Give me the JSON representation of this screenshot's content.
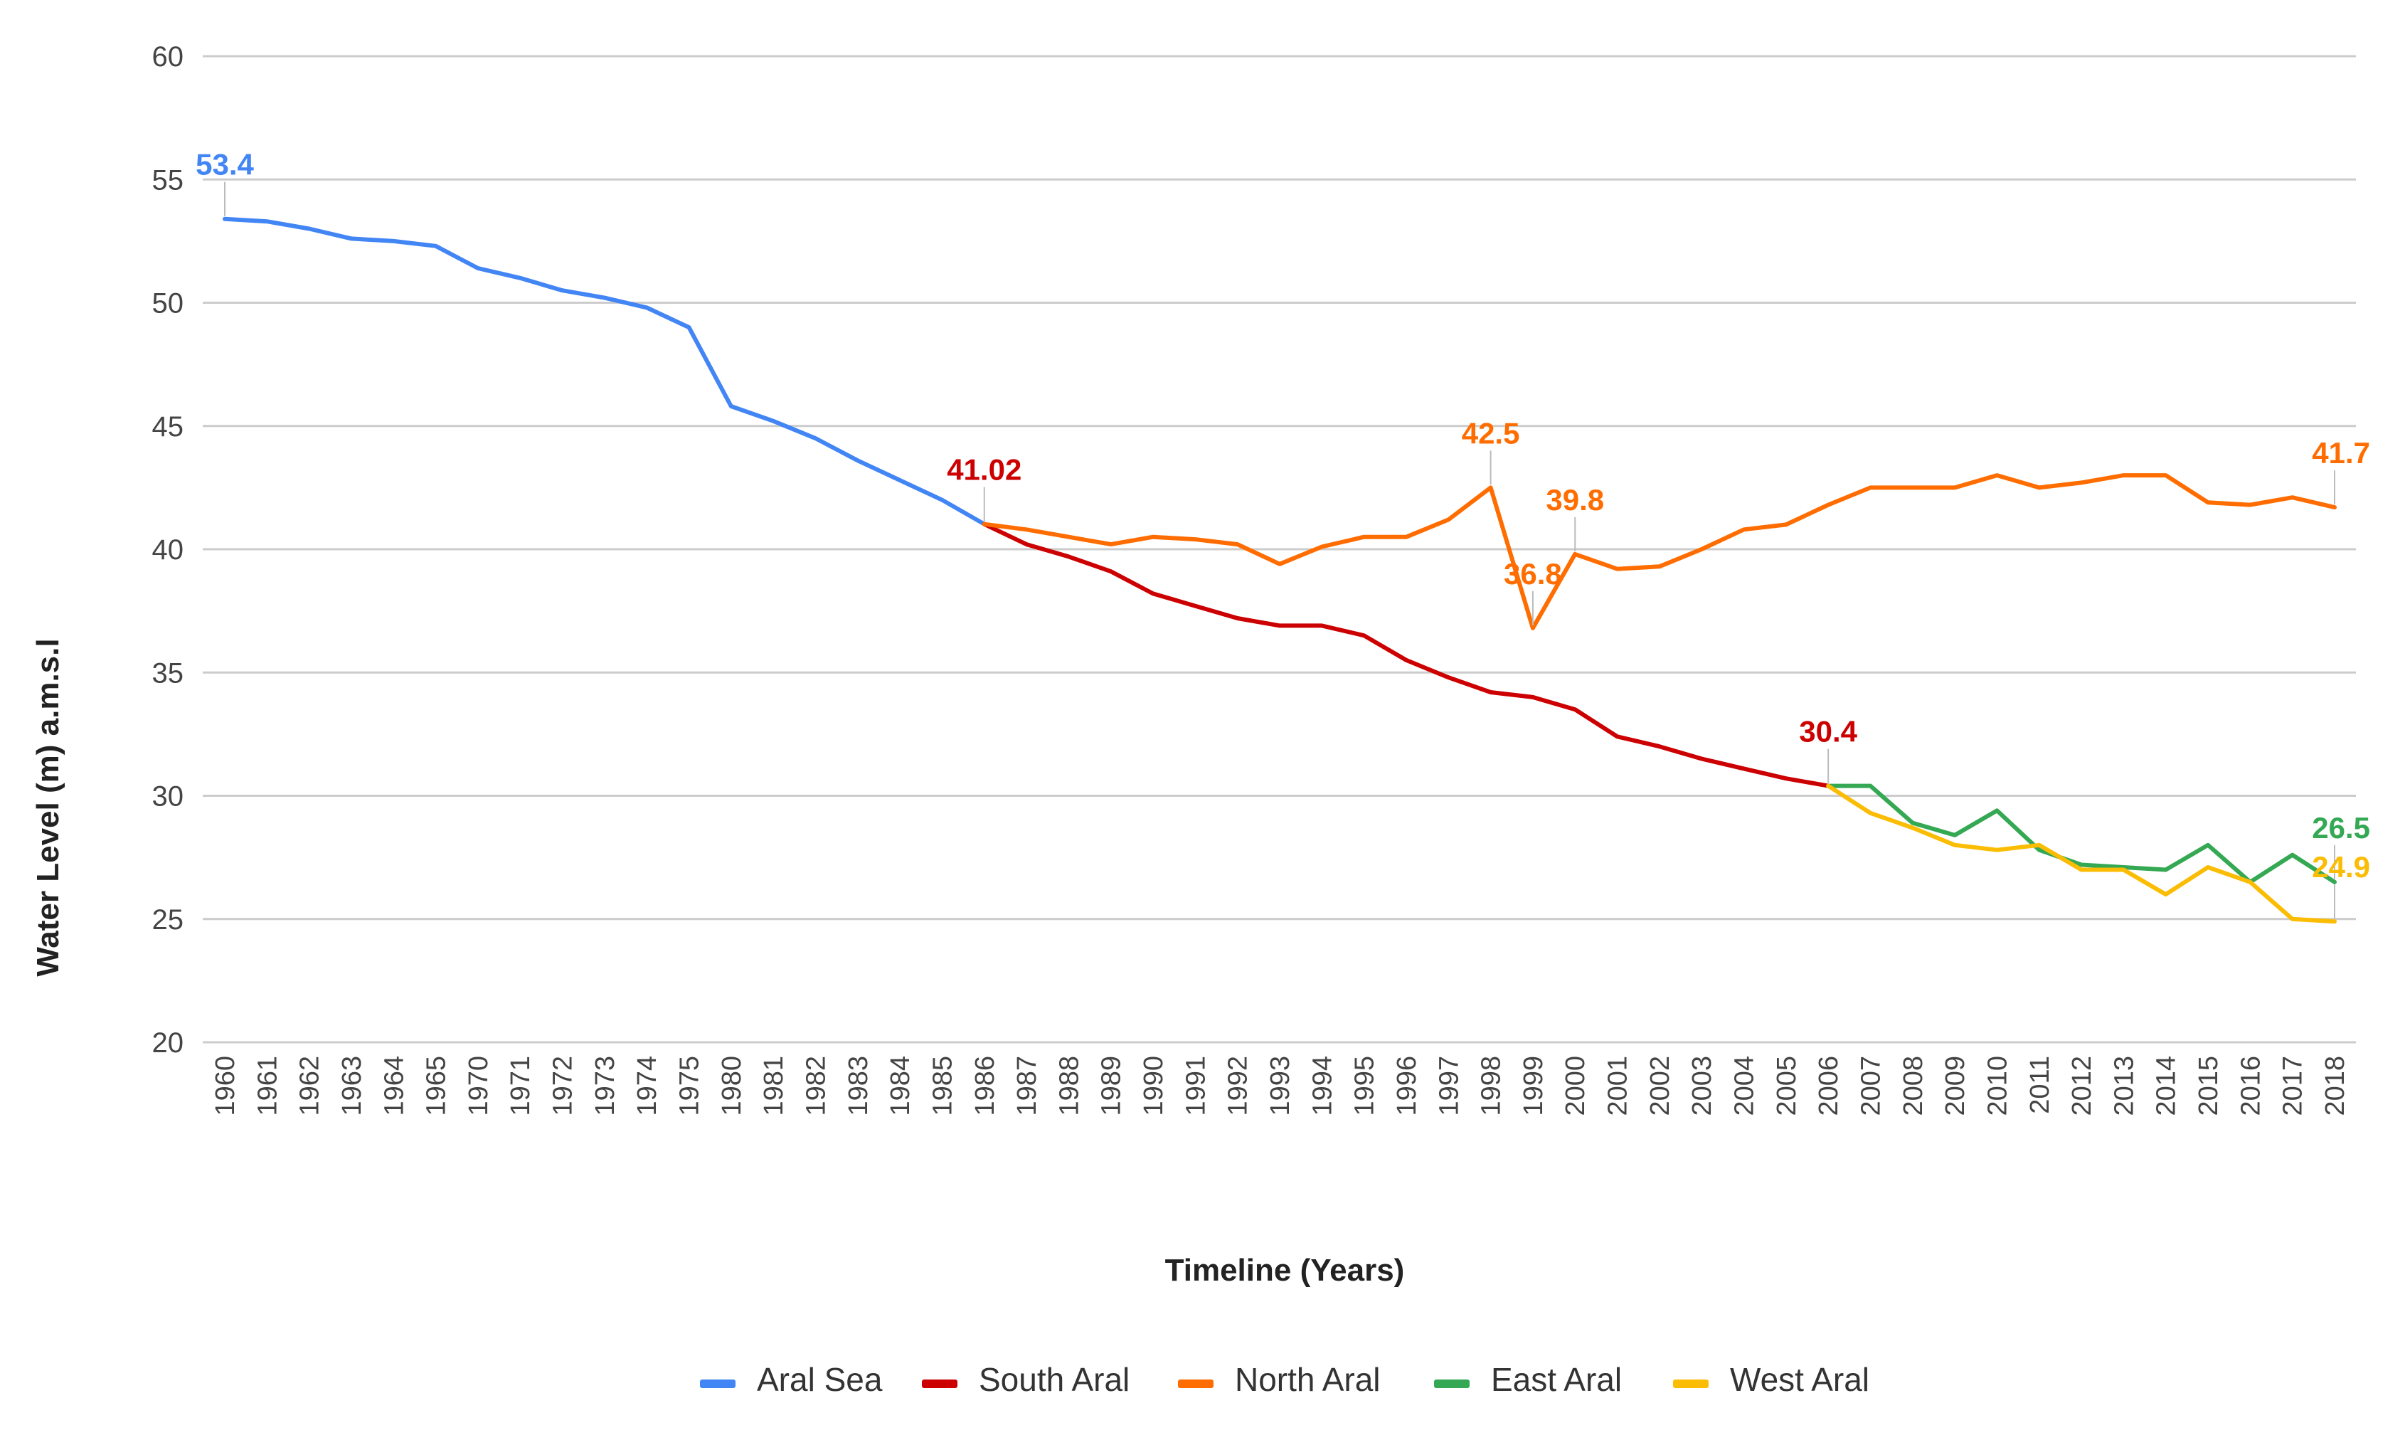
{
  "chart_data": {
    "type": "line",
    "title": "",
    "xlabel": "Timeline (Years)",
    "ylabel": "Water Level (m) a.m.s.l",
    "ylim": [
      20,
      60
    ],
    "yticks": [
      20,
      25,
      30,
      35,
      40,
      45,
      50,
      55,
      60
    ],
    "grid": true,
    "legend_position": "bottom",
    "categories": [
      "1960",
      "1961",
      "1962",
      "1963",
      "1964",
      "1965",
      "1970",
      "1971",
      "1972",
      "1973",
      "1974",
      "1975",
      "1980",
      "1981",
      "1982",
      "1983",
      "1984",
      "1985",
      "1986",
      "1987",
      "1988",
      "1989",
      "1990",
      "1991",
      "1992",
      "1993",
      "1994",
      "1995",
      "1996",
      "1997",
      "1998",
      "1999",
      "2000",
      "2001",
      "2002",
      "2003",
      "2004",
      "2005",
      "2006",
      "2007",
      "2008",
      "2009",
      "2010",
      "2011",
      "2012",
      "2013",
      "2014",
      "2015",
      "2016",
      "2017",
      "2018"
    ],
    "series": [
      {
        "name": "Aral Sea",
        "color": "#4285f4",
        "values": [
          53.4,
          53.3,
          53.0,
          52.6,
          52.5,
          52.3,
          51.4,
          51.0,
          50.5,
          50.2,
          49.8,
          49.0,
          45.8,
          45.2,
          44.5,
          43.6,
          42.8,
          42.0,
          41.02,
          null,
          null,
          null,
          null,
          null,
          null,
          null,
          null,
          null,
          null,
          null,
          null,
          null,
          null,
          null,
          null,
          null,
          null,
          null,
          null,
          null,
          null,
          null,
          null,
          null,
          null,
          null,
          null,
          null,
          null,
          null,
          null
        ]
      },
      {
        "name": "South Aral",
        "color": "#cc0000",
        "values": [
          null,
          null,
          null,
          null,
          null,
          null,
          null,
          null,
          null,
          null,
          null,
          null,
          null,
          null,
          null,
          null,
          null,
          null,
          41.02,
          40.2,
          39.7,
          39.1,
          38.2,
          37.7,
          37.2,
          36.9,
          36.9,
          36.5,
          35.5,
          34.8,
          34.2,
          34.0,
          33.5,
          32.4,
          32.0,
          31.5,
          31.1,
          30.7,
          30.4,
          null,
          null,
          null,
          null,
          null,
          null,
          null,
          null,
          null,
          null,
          null,
          null
        ]
      },
      {
        "name": "North Aral",
        "color": "#ff6d01",
        "values": [
          null,
          null,
          null,
          null,
          null,
          null,
          null,
          null,
          null,
          null,
          null,
          null,
          null,
          null,
          null,
          null,
          null,
          null,
          41.02,
          40.8,
          40.5,
          40.2,
          40.5,
          40.4,
          40.2,
          39.4,
          40.1,
          40.5,
          40.5,
          41.2,
          42.5,
          36.8,
          39.8,
          39.2,
          39.3,
          40.0,
          40.8,
          41.0,
          41.8,
          42.5,
          42.5,
          42.5,
          43.0,
          42.5,
          42.7,
          43.0,
          43.0,
          41.9,
          41.8,
          42.1,
          41.7
        ]
      },
      {
        "name": "East Aral",
        "color": "#34a853",
        "values": [
          null,
          null,
          null,
          null,
          null,
          null,
          null,
          null,
          null,
          null,
          null,
          null,
          null,
          null,
          null,
          null,
          null,
          null,
          null,
          null,
          null,
          null,
          null,
          null,
          null,
          null,
          null,
          null,
          null,
          null,
          null,
          null,
          null,
          null,
          null,
          null,
          null,
          null,
          30.4,
          30.4,
          28.9,
          28.4,
          29.4,
          27.8,
          27.2,
          27.1,
          27.0,
          28.0,
          26.5,
          27.6,
          26.5
        ]
      },
      {
        "name": "West Aral",
        "color": "#fbbc04",
        "values": [
          null,
          null,
          null,
          null,
          null,
          null,
          null,
          null,
          null,
          null,
          null,
          null,
          null,
          null,
          null,
          null,
          null,
          null,
          null,
          null,
          null,
          null,
          null,
          null,
          null,
          null,
          null,
          null,
          null,
          null,
          null,
          null,
          null,
          null,
          null,
          null,
          null,
          null,
          30.4,
          29.3,
          28.7,
          28.0,
          27.8,
          28.0,
          27.0,
          27.0,
          26.0,
          27.1,
          26.5,
          25.0,
          24.9
        ]
      }
    ],
    "annotations": [
      {
        "series": "Aral Sea",
        "category": "1960",
        "text": "53.4",
        "placement": "above"
      },
      {
        "series": "South Aral",
        "category": "1986",
        "text": "41.02",
        "placement": "above"
      },
      {
        "series": "North Aral",
        "category": "1998",
        "text": "42.5",
        "placement": "above"
      },
      {
        "series": "North Aral",
        "category": "1999",
        "text": "36.8",
        "placement": "above"
      },
      {
        "series": "North Aral",
        "category": "2000",
        "text": "39.8",
        "placement": "above"
      },
      {
        "series": "South Aral",
        "category": "2006",
        "text": "30.4",
        "placement": "above"
      },
      {
        "series": "North Aral",
        "category": "2018",
        "text": "41.7",
        "placement": "above"
      },
      {
        "series": "East Aral",
        "category": "2018",
        "text": "26.5",
        "placement": "above"
      },
      {
        "series": "West Aral",
        "category": "2018",
        "text": "24.9",
        "placement": "above"
      }
    ]
  }
}
